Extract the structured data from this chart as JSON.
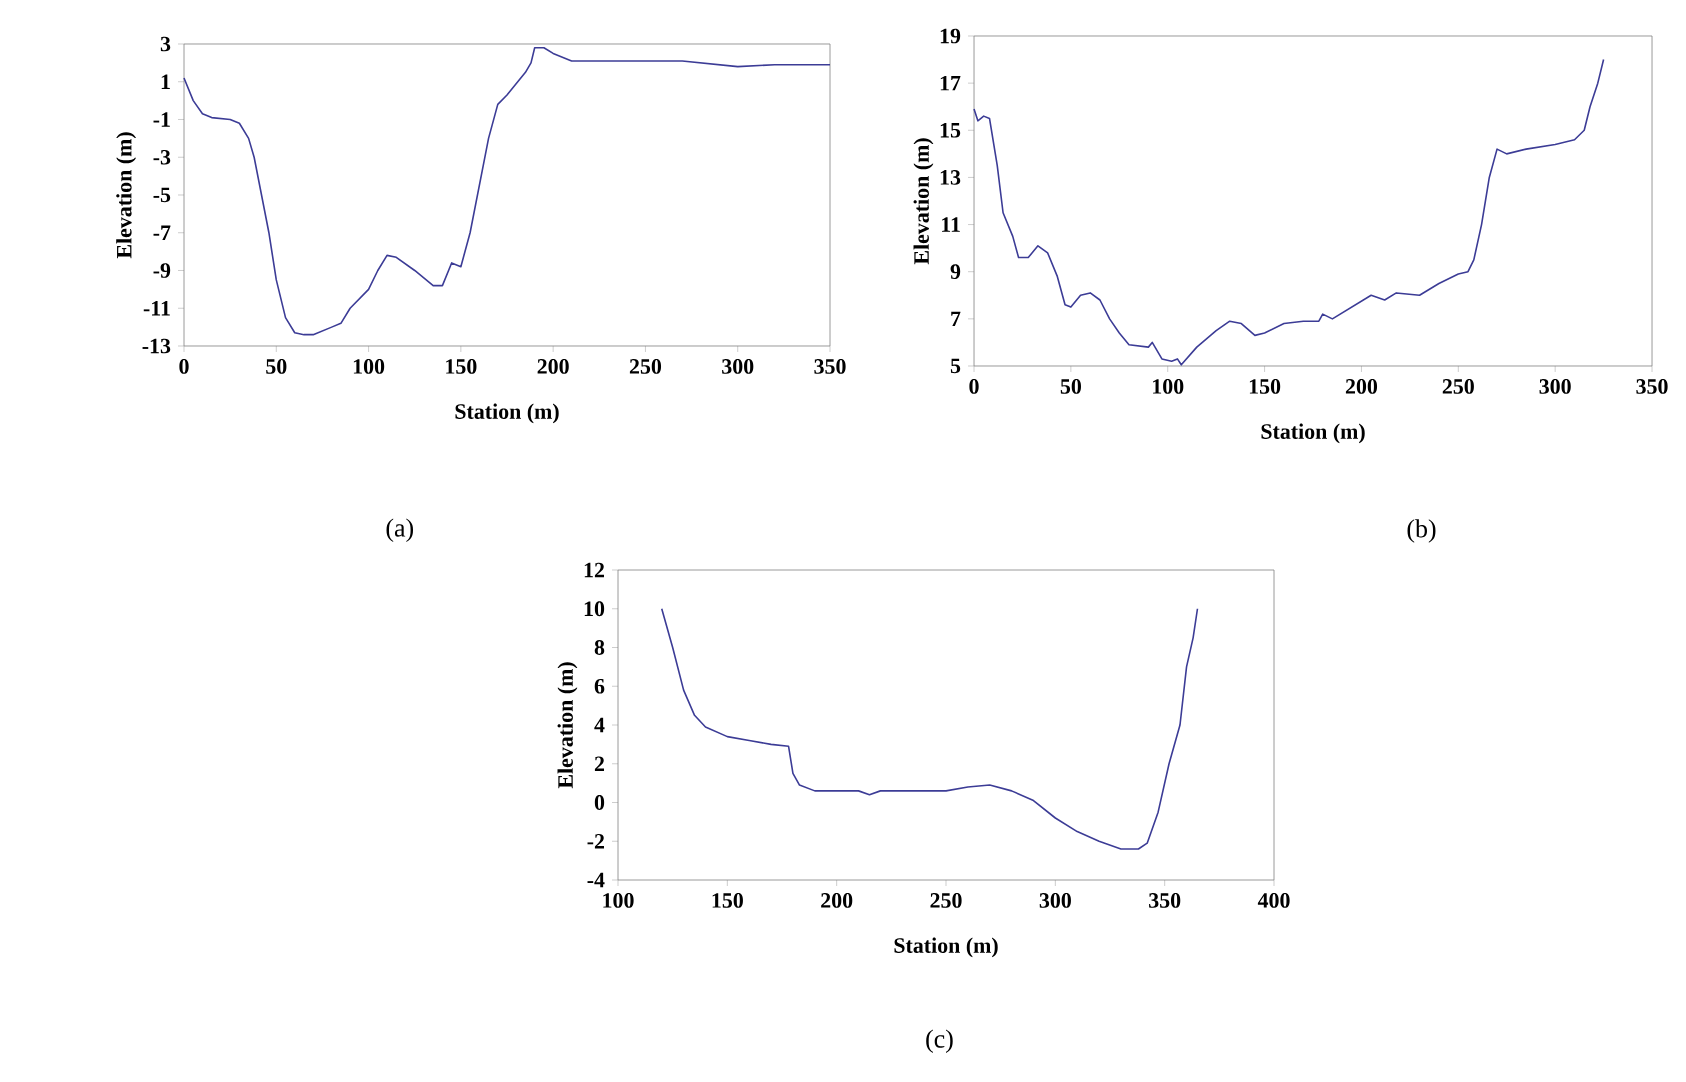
{
  "chart_data": [
    {
      "type": "line",
      "xlabel": "Station (m)",
      "ylabel": "Elevation (m)",
      "annotations": [
        "(a)"
      ],
      "color": "#3c3c96",
      "x": [
        0,
        5,
        10,
        15,
        25,
        30,
        35,
        38,
        42,
        46,
        50,
        55,
        60,
        65,
        70,
        80,
        85,
        90,
        100,
        105,
        110,
        115,
        125,
        135,
        140,
        145,
        150,
        155,
        160,
        165,
        170,
        175,
        185,
        188,
        190,
        195,
        200,
        210,
        250,
        270,
        300,
        320,
        350
      ],
      "values": [
        1.2,
        0,
        -0.7,
        -0.9,
        -1,
        -1.2,
        -2,
        -3,
        -5,
        -7,
        -9.5,
        -11.5,
        -12.3,
        -12.4,
        -12.4,
        -12,
        -11.8,
        -11,
        -10,
        -9,
        -8.2,
        -8.3,
        -9,
        -9.8,
        -9.8,
        -8.6,
        -8.8,
        -7,
        -4.5,
        -2,
        -0.2,
        0.3,
        1.5,
        2,
        2.8,
        2.8,
        2.5,
        2.1,
        2.1,
        2.1,
        1.8,
        1.9,
        1.9
      ],
      "xlim": [
        0,
        350
      ],
      "xticks": [
        0,
        50,
        100,
        150,
        200,
        250,
        300,
        350
      ],
      "ylim": [
        -13,
        3
      ],
      "yticks": [
        -13,
        -11,
        -9,
        -7,
        -5,
        -3,
        -1,
        1,
        3
      ]
    },
    {
      "type": "line",
      "xlabel": "Station (m)",
      "ylabel": "Elevation (m)",
      "annotations": [
        "(b)"
      ],
      "color": "#3c3c96",
      "x": [
        0,
        2,
        5,
        8,
        12,
        15,
        20,
        23,
        28,
        33,
        38,
        43,
        47,
        50,
        55,
        60,
        65,
        70,
        75,
        80,
        90,
        92,
        97,
        102,
        105,
        107,
        115,
        125,
        132,
        138,
        145,
        150,
        160,
        170,
        178,
        180,
        185,
        195,
        205,
        212,
        218,
        230,
        240,
        250,
        255,
        258,
        262,
        266,
        270,
        275,
        285,
        300,
        310,
        315,
        318,
        322,
        325
      ],
      "values": [
        15.9,
        15.4,
        15.6,
        15.5,
        13.5,
        11.5,
        10.5,
        9.6,
        9.6,
        10.1,
        9.8,
        8.8,
        7.6,
        7.5,
        8,
        8.1,
        7.8,
        7,
        6.4,
        5.9,
        5.8,
        6,
        5.3,
        5.2,
        5.3,
        5.05,
        5.8,
        6.5,
        6.9,
        6.8,
        6.3,
        6.4,
        6.8,
        6.9,
        6.9,
        7.2,
        7,
        7.5,
        8,
        7.8,
        8.1,
        8,
        8.5,
        8.9,
        9,
        9.5,
        11,
        13,
        14.2,
        14,
        14.2,
        14.4,
        14.6,
        15,
        16,
        17,
        18
      ],
      "xlim": [
        0,
        350
      ],
      "xticks": [
        0,
        50,
        100,
        150,
        200,
        250,
        300,
        350
      ],
      "ylim": [
        5,
        19
      ],
      "yticks": [
        5,
        7,
        9,
        11,
        13,
        15,
        17,
        19
      ]
    },
    {
      "type": "line",
      "xlabel": "Station (m)",
      "ylabel": "Elevation (m)",
      "annotations": [
        "(c)"
      ],
      "color": "#3c3c96",
      "x": [
        120,
        125,
        130,
        135,
        140,
        150,
        160,
        170,
        178,
        180,
        183,
        190,
        210,
        215,
        220,
        250,
        260,
        270,
        280,
        290,
        300,
        310,
        320,
        330,
        338,
        342,
        347,
        352,
        357,
        360,
        363,
        365
      ],
      "values": [
        10,
        8,
        5.8,
        4.5,
        3.9,
        3.4,
        3.2,
        3,
        2.9,
        1.5,
        0.9,
        0.6,
        0.6,
        0.4,
        0.6,
        0.6,
        0.8,
        0.9,
        0.6,
        0.1,
        -0.8,
        -1.5,
        -2,
        -2.4,
        -2.4,
        -2.1,
        -0.5,
        2,
        4,
        7,
        8.5,
        10
      ],
      "xlim": [
        100,
        400
      ],
      "xticks": [
        100,
        150,
        200,
        250,
        300,
        350,
        400
      ],
      "ylim": [
        -4,
        12
      ],
      "yticks": [
        -4,
        -2,
        0,
        2,
        4,
        6,
        8,
        10,
        12
      ]
    }
  ]
}
